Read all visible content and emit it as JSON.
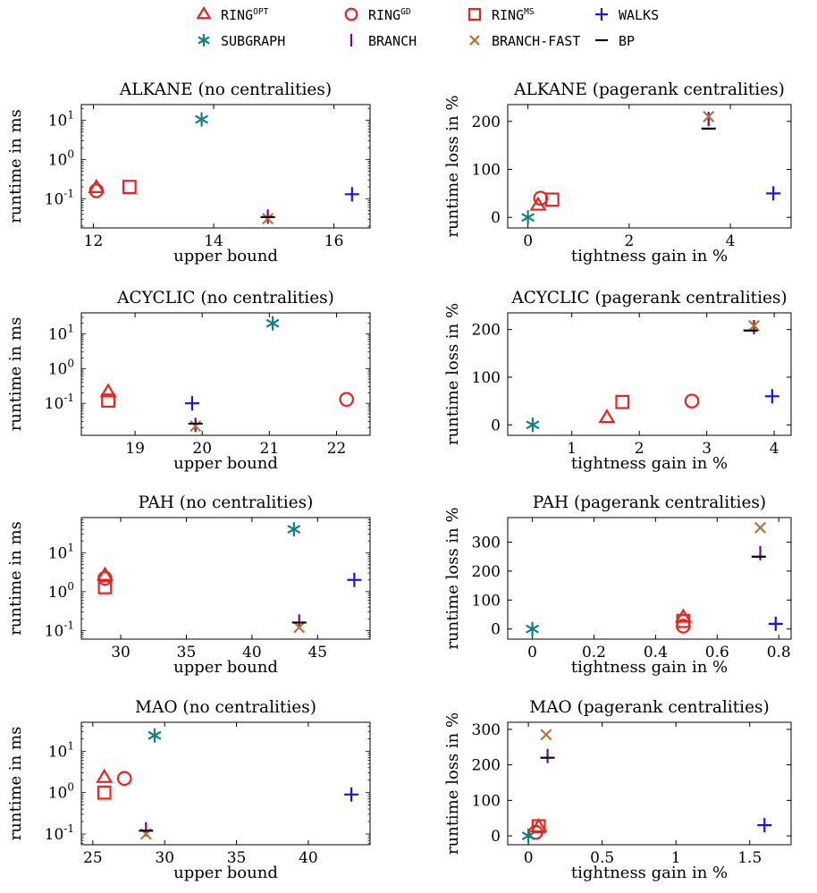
{
  "legend": [
    {
      "key": "ring_opt",
      "name": "RING",
      "sup": "OPT",
      "marker": "triangle",
      "color": "#e8231f"
    },
    {
      "key": "ring_gd",
      "name": "RING",
      "sup": "GD",
      "marker": "circle",
      "color": "#e8231f"
    },
    {
      "key": "ring_ms",
      "name": "RING",
      "sup": "MS",
      "marker": "square",
      "color": "#e8231f"
    },
    {
      "key": "walks",
      "name": "WALKS",
      "sup": "",
      "marker": "plus",
      "color": "#1414e6"
    },
    {
      "key": "subgraph",
      "name": "SUBGRAPH",
      "sup": "",
      "marker": "asterisk",
      "color": "#118080"
    },
    {
      "key": "branch",
      "name": "BRANCH",
      "sup": "",
      "marker": "vbar",
      "color": "#800080"
    },
    {
      "key": "branch_fast",
      "name": "BRANCH-FAST",
      "sup": "",
      "marker": "cross",
      "color": "#b87333"
    },
    {
      "key": "bp",
      "name": "BP",
      "sup": "",
      "marker": "hbar",
      "color": "#000000"
    }
  ],
  "chart_data": [
    {
      "type": "scatter",
      "title": "ALKANE (no centralities)",
      "xlabel": "upper bound",
      "ylabel": "runtime in ms",
      "yscale": "log",
      "xlim": [
        11.8,
        16.6
      ],
      "ylim": [
        0.018,
        25
      ],
      "xticks": [
        12,
        14,
        16
      ],
      "yticks": [
        0.1,
        1,
        10
      ],
      "points": {
        "ring_opt": [
          12.05,
          0.19
        ],
        "ring_gd": [
          12.05,
          0.16
        ],
        "ring_ms": [
          12.6,
          0.2
        ],
        "walks": [
          16.3,
          0.13
        ],
        "subgraph": [
          13.8,
          10.5
        ],
        "branch": [
          14.9,
          0.035
        ],
        "branch_fast": [
          14.9,
          0.031
        ],
        "bp": [
          14.9,
          0.034
        ]
      }
    },
    {
      "type": "scatter",
      "title": "ALKANE (pagerank centralities)",
      "xlabel": "tightness gain in %",
      "ylabel": "runtime loss in %",
      "yscale": "linear",
      "xlim": [
        -0.4,
        5.2
      ],
      "ylim": [
        -22,
        235
      ],
      "xticks": [
        0,
        2,
        4
      ],
      "yticks": [
        0,
        100,
        200
      ],
      "points": {
        "ring_opt": [
          0.2,
          25
        ],
        "ring_gd": [
          0.25,
          40
        ],
        "ring_ms": [
          0.48,
          37
        ],
        "walks": [
          4.85,
          50
        ],
        "subgraph": [
          0,
          0
        ],
        "branch": [
          3.57,
          205
        ],
        "branch_fast": [
          3.57,
          210
        ],
        "bp": [
          3.57,
          185
        ]
      }
    },
    {
      "type": "scatter",
      "title": "ACYCLIC (no centralities)",
      "xlabel": "upper bound",
      "ylabel": "runtime in ms",
      "yscale": "log",
      "xlim": [
        18.2,
        22.5
      ],
      "ylim": [
        0.012,
        40
      ],
      "xticks": [
        19,
        20,
        21,
        22
      ],
      "yticks": [
        0.1,
        1,
        10
      ],
      "points": {
        "ring_opt": [
          18.6,
          0.21
        ],
        "ring_gd": [
          22.15,
          0.13
        ],
        "ring_ms": [
          18.6,
          0.12
        ],
        "walks": [
          19.85,
          0.1
        ],
        "subgraph": [
          21.05,
          20
        ],
        "branch": [
          19.9,
          0.024
        ],
        "branch_fast": [
          19.9,
          0.022
        ],
        "bp": [
          19.9,
          0.026
        ]
      }
    },
    {
      "type": "scatter",
      "title": "ACYCLIC (pagerank centralities)",
      "xlabel": "tightness gain in %",
      "ylabel": "runtime loss in %",
      "yscale": "linear",
      "xlim": [
        0.05,
        4.25
      ],
      "ylim": [
        -22,
        235
      ],
      "xticks": [
        1,
        2,
        3,
        4
      ],
      "yticks": [
        0,
        100,
        200
      ],
      "points": {
        "ring_opt": [
          1.52,
          15
        ],
        "ring_gd": [
          2.78,
          50
        ],
        "ring_ms": [
          1.75,
          48
        ],
        "walks": [
          3.97,
          60
        ],
        "subgraph": [
          0.42,
          0
        ],
        "branch": [
          3.7,
          205
        ],
        "branch_fast": [
          3.7,
          208
        ],
        "bp": [
          3.65,
          198
        ]
      }
    },
    {
      "type": "scatter",
      "title": "PAH (no centralities)",
      "xlabel": "upper bound",
      "ylabel": "runtime in ms",
      "yscale": "log",
      "xlim": [
        27,
        49
      ],
      "ylim": [
        0.06,
        80
      ],
      "xticks": [
        30,
        35,
        40,
        45
      ],
      "yticks": [
        0.1,
        1,
        10
      ],
      "points": {
        "ring_opt": [
          28.8,
          2.6
        ],
        "ring_gd": [
          28.8,
          2.2
        ],
        "ring_ms": [
          28.8,
          1.3
        ],
        "walks": [
          47.8,
          2
        ],
        "subgraph": [
          43.2,
          40
        ],
        "branch": [
          43.6,
          0.17
        ],
        "branch_fast": [
          43.6,
          0.12
        ],
        "bp": [
          43.6,
          0.16
        ]
      }
    },
    {
      "type": "scatter",
      "title": "PAH (pagerank centralities)",
      "xlabel": "tightness gain in %",
      "ylabel": "runtime loss in %",
      "yscale": "linear",
      "xlim": [
        -0.08,
        0.84
      ],
      "ylim": [
        -35,
        385
      ],
      "xticks": [
        0,
        0.2,
        0.4,
        0.6,
        0.8
      ],
      "yticks": [
        0,
        100,
        200,
        300
      ],
      "points": {
        "ring_opt": [
          0.49,
          40
        ],
        "ring_gd": [
          0.49,
          10
        ],
        "ring_ms": [
          0.49,
          28
        ],
        "walks": [
          0.79,
          18
        ],
        "subgraph": [
          0,
          0
        ],
        "branch": [
          0.74,
          262
        ],
        "branch_fast": [
          0.74,
          350
        ],
        "bp": [
          0.735,
          250
        ]
      }
    },
    {
      "type": "scatter",
      "title": "MAO (no centralities)",
      "xlabel": "upper bound",
      "ylabel": "runtime in ms",
      "yscale": "log",
      "xlim": [
        24.2,
        44.3
      ],
      "ylim": [
        0.055,
        50
      ],
      "xticks": [
        25,
        30,
        35,
        40
      ],
      "yticks": [
        0.1,
        1,
        10
      ],
      "points": {
        "ring_opt": [
          25.8,
          2.3
        ],
        "ring_gd": [
          27.2,
          2.2
        ],
        "ring_ms": [
          25.8,
          1
        ],
        "walks": [
          43,
          0.9
        ],
        "subgraph": [
          29.3,
          24
        ],
        "branch": [
          28.7,
          0.13
        ],
        "branch_fast": [
          28.7,
          0.1
        ],
        "bp": [
          28.7,
          0.12
        ]
      }
    },
    {
      "type": "scatter",
      "title": "MAO (pagerank centralities)",
      "xlabel": "tightness gain in %",
      "ylabel": "runtime loss in %",
      "yscale": "linear",
      "xlim": [
        -0.14,
        1.78
      ],
      "ylim": [
        -25,
        320
      ],
      "xticks": [
        0,
        0.5,
        1,
        1.5
      ],
      "yticks": [
        0,
        100,
        200,
        300
      ],
      "points": {
        "ring_opt": [
          0.07,
          25
        ],
        "ring_gd": [
          0.05,
          10
        ],
        "ring_ms": [
          0.07,
          27
        ],
        "walks": [
          1.6,
          30
        ],
        "subgraph": [
          0,
          0
        ],
        "branch": [
          0.13,
          225
        ],
        "branch_fast": [
          0.12,
          285
        ],
        "bp": [
          0.13,
          220
        ]
      }
    }
  ]
}
